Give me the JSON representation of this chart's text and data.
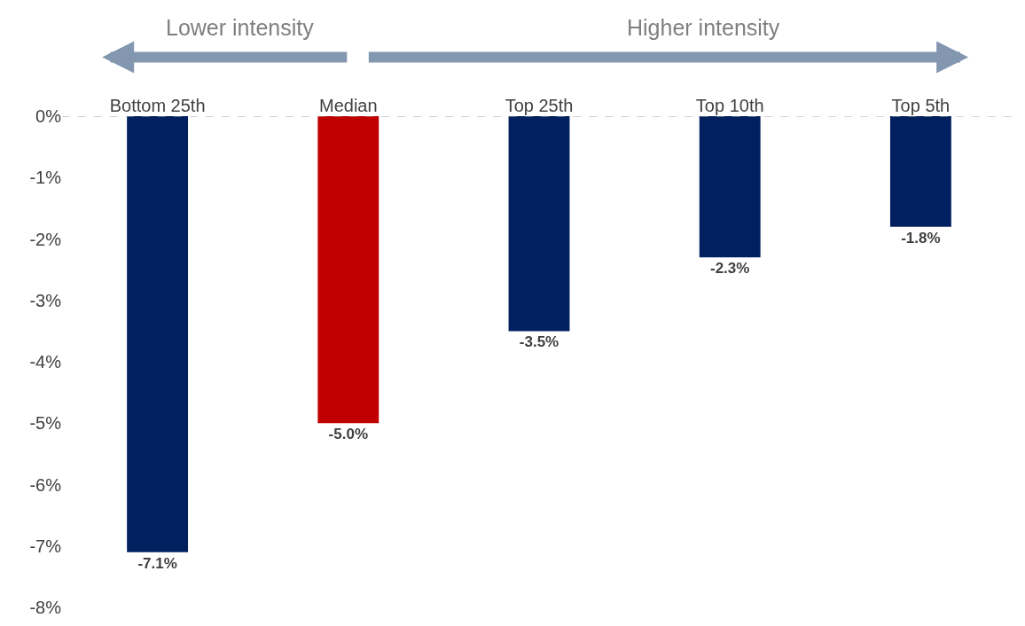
{
  "chart_data": {
    "type": "bar",
    "categories": [
      "Bottom 25th",
      "Median",
      "Top 25th",
      "Top 10th",
      "Top 5th"
    ],
    "values": [
      -7.1,
      -5.0,
      -3.5,
      -2.3,
      -1.8
    ],
    "colors": [
      "#002060",
      "#c00000",
      "#002060",
      "#002060",
      "#002060"
    ],
    "value_labels": [
      "-7.1%",
      "-5.0%",
      "-3.5%",
      "-2.3%",
      "-1.8%"
    ],
    "ylim": [
      -8,
      0
    ],
    "yticks": [
      {
        "value": -8,
        "label": "-8%"
      },
      {
        "value": -7,
        "label": "-7%"
      },
      {
        "value": -6,
        "label": "-6%"
      },
      {
        "value": -5,
        "label": "-5%"
      },
      {
        "value": -4,
        "label": "-4%"
      },
      {
        "value": -3,
        "label": "-3%"
      },
      {
        "value": -2,
        "label": "-2%"
      },
      {
        "value": -1,
        "label": "-1%"
      },
      {
        "value": 0,
        "label": "0%"
      }
    ],
    "ref_lines": [
      {
        "axis": "y",
        "value": 0,
        "label": null,
        "color": "#a6a6a6",
        "line_style": "dashed"
      }
    ],
    "annotations": [
      "Lower intensity",
      "Higher intensity"
    ],
    "legend": false
  }
}
